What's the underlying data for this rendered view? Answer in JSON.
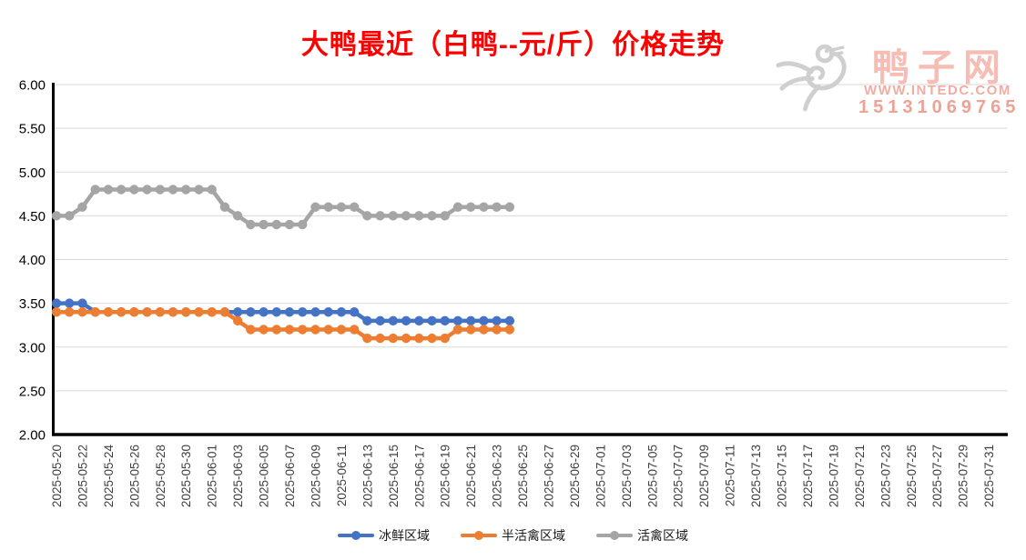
{
  "title": {
    "text": "大鸭最近（白鸭--元/斤）价格走势",
    "color": "#fe0000"
  },
  "watermark": {
    "icon": "duck-logo-icon",
    "site_name": "鸭子网",
    "url": "WWW.INTEDC.COM",
    "phone": "15131069765"
  },
  "chart_data": {
    "type": "line",
    "title": "大鸭最近（白鸭--元/斤）价格走势",
    "xlabel": "",
    "ylabel": "",
    "ylim": [
      2.0,
      6.0
    ],
    "ytick_step": 0.5,
    "grid": true,
    "legend_position": "bottom",
    "yticks": [
      "6.00",
      "5.50",
      "5.00",
      "4.50",
      "4.00",
      "3.50",
      "3.00",
      "2.50",
      "2.00"
    ],
    "xtick_labels": [
      "2025-05-20",
      "2025-05-22",
      "2025-05-24",
      "2025-05-26",
      "2025-05-28",
      "2025-05-30",
      "2025-06-01",
      "2025-06-03",
      "2025-06-05",
      "2025-06-07",
      "2025-06-09",
      "2025-06-11",
      "2025-06-13",
      "2025-06-15",
      "2025-06-17",
      "2025-06-19",
      "2025-06-21",
      "2025-06-23",
      "2025-06-25",
      "2025-06-27",
      "2025-06-29",
      "2025-07-01",
      "2025-07-03",
      "2025-07-05",
      "2025-07-07",
      "2025-07-09",
      "2025-07-11",
      "2025-07-13",
      "2025-07-15",
      "2025-07-17",
      "2025-07-19",
      "2025-07-21",
      "2025-07-23",
      "2025-07-25",
      "2025-07-27",
      "2025-07-29",
      "2025-07-31"
    ],
    "x_dates": [
      "2025-05-20",
      "2025-05-21",
      "2025-05-22",
      "2025-05-23",
      "2025-05-24",
      "2025-05-25",
      "2025-05-26",
      "2025-05-27",
      "2025-05-28",
      "2025-05-29",
      "2025-05-30",
      "2025-05-31",
      "2025-06-01",
      "2025-06-02",
      "2025-06-03",
      "2025-06-04",
      "2025-06-05",
      "2025-06-06",
      "2025-06-07",
      "2025-06-08",
      "2025-06-09",
      "2025-06-10",
      "2025-06-11",
      "2025-06-12",
      "2025-06-13",
      "2025-06-14",
      "2025-06-15",
      "2025-06-16",
      "2025-06-17",
      "2025-06-18",
      "2025-06-19",
      "2025-06-20",
      "2025-06-21",
      "2025-06-22",
      "2025-06-23",
      "2025-06-24"
    ],
    "series": [
      {
        "name": "冰鲜区域",
        "color": "#4472C4",
        "values": [
          3.5,
          3.5,
          3.5,
          3.4,
          3.4,
          3.4,
          3.4,
          3.4,
          3.4,
          3.4,
          3.4,
          3.4,
          3.4,
          3.4,
          3.4,
          3.4,
          3.4,
          3.4,
          3.4,
          3.4,
          3.4,
          3.4,
          3.4,
          3.4,
          3.3,
          3.3,
          3.3,
          3.3,
          3.3,
          3.3,
          3.3,
          3.3,
          3.3,
          3.3,
          3.3,
          3.3
        ]
      },
      {
        "name": "半活禽区域",
        "color": "#ED7D31",
        "values": [
          3.4,
          3.4,
          3.4,
          3.4,
          3.4,
          3.4,
          3.4,
          3.4,
          3.4,
          3.4,
          3.4,
          3.4,
          3.4,
          3.4,
          3.3,
          3.2,
          3.2,
          3.2,
          3.2,
          3.2,
          3.2,
          3.2,
          3.2,
          3.2,
          3.1,
          3.1,
          3.1,
          3.1,
          3.1,
          3.1,
          3.1,
          3.2,
          3.2,
          3.2,
          3.2,
          3.2
        ]
      },
      {
        "name": "活禽区域",
        "color": "#A5A5A5",
        "values": [
          4.5,
          4.5,
          4.6,
          4.8,
          4.8,
          4.8,
          4.8,
          4.8,
          4.8,
          4.8,
          4.8,
          4.8,
          4.8,
          4.6,
          4.5,
          4.4,
          4.4,
          4.4,
          4.4,
          4.4,
          4.6,
          4.6,
          4.6,
          4.6,
          4.5,
          4.5,
          4.5,
          4.5,
          4.5,
          4.5,
          4.5,
          4.6,
          4.6,
          4.6,
          4.6,
          4.6
        ]
      }
    ]
  }
}
